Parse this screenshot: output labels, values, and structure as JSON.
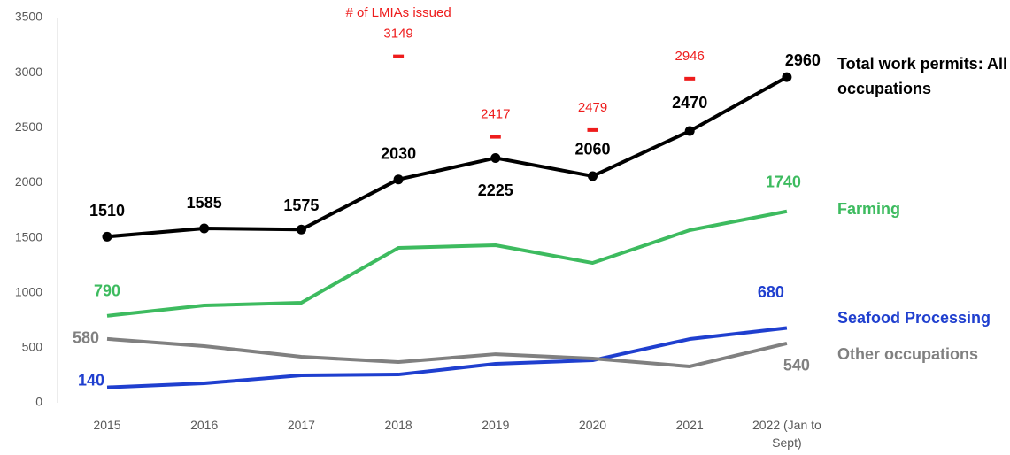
{
  "chart_data": {
    "type": "line",
    "categories": [
      "2015",
      "2016",
      "2017",
      "2018",
      "2019",
      "2020",
      "2021",
      "2022 (Jan to Sept)"
    ],
    "ylim": [
      0,
      3500
    ],
    "yticks": [
      0,
      500,
      1000,
      1500,
      2000,
      2500,
      3000,
      3500
    ],
    "series": [
      {
        "name": "Total work permits: All occupations",
        "color": "#000000",
        "markers": true,
        "values": [
          1510,
          1585,
          1575,
          2030,
          2225,
          2060,
          2470,
          2960
        ],
        "value_labels": [
          "1510",
          "1585",
          "1575",
          "2030",
          "2225",
          "2060",
          "2470",
          "2960"
        ]
      },
      {
        "name": "Farming",
        "color": "#3dbb5f",
        "markers": false,
        "values": [
          790,
          885,
          909,
          1408,
          1432,
          1271,
          1569,
          1740
        ],
        "value_labels": [
          "790",
          null,
          null,
          null,
          null,
          null,
          null,
          "1740"
        ]
      },
      {
        "name": "Seafood Processing",
        "color": "#1f3fcf",
        "markers": false,
        "values": [
          140,
          177,
          249,
          257,
          354,
          386,
          579,
          680
        ],
        "value_labels": [
          "140",
          null,
          null,
          null,
          null,
          null,
          null,
          "680"
        ]
      },
      {
        "name": "Other occupations",
        "color": "#808080",
        "markers": false,
        "values": [
          580,
          515,
          418,
          370,
          442,
          402,
          330,
          540
        ],
        "value_labels": [
          "580",
          null,
          null,
          null,
          null,
          null,
          null,
          "540"
        ]
      }
    ],
    "lmia": {
      "label": "# of LMIAs issued",
      "color": "#ee1c1c",
      "values": [
        null,
        null,
        null,
        3149,
        2417,
        2479,
        2946,
        null
      ]
    }
  }
}
